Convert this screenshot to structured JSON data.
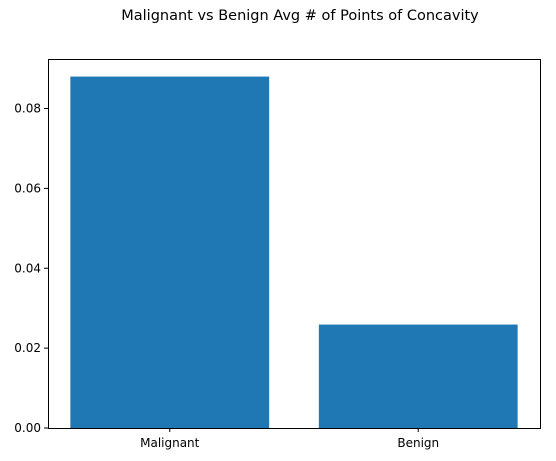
{
  "chart_data": {
    "type": "bar",
    "title": "Malignant vs Benign Avg # of Points of Concavity",
    "xlabel": "",
    "ylabel": "",
    "categories": [
      "Malignant",
      "Benign"
    ],
    "values": [
      0.088,
      0.0259
    ],
    "ylim": [
      0,
      0.0924
    ],
    "yticks": [
      "0.00",
      "0.02",
      "0.04",
      "0.06",
      "0.08"
    ],
    "grid": false,
    "bar_color": "#1f77b4"
  }
}
